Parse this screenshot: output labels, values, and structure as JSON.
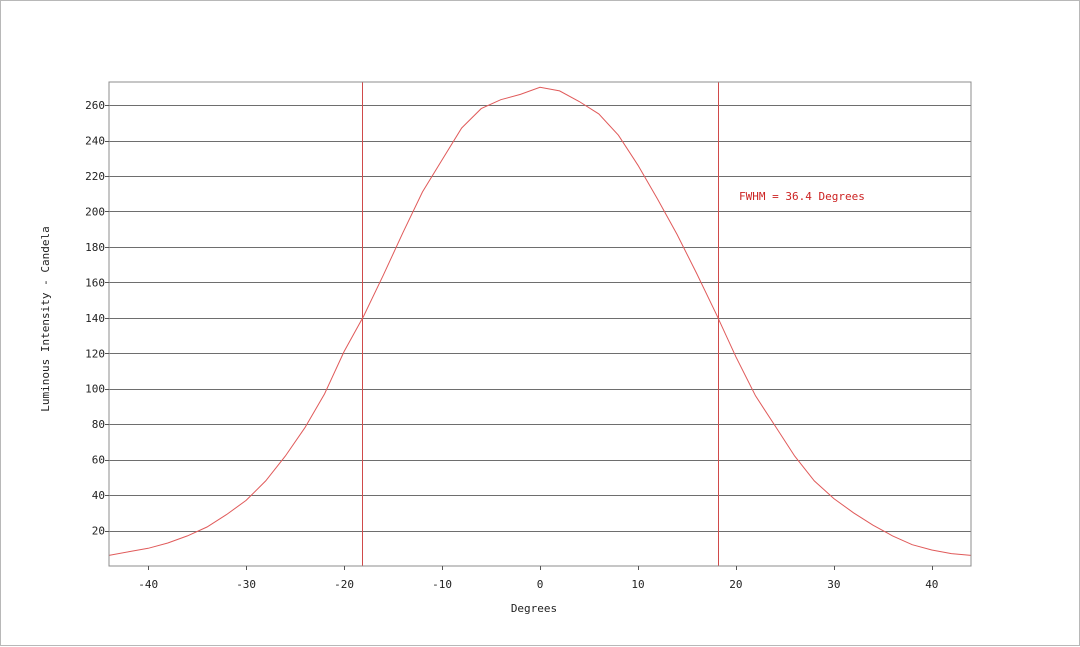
{
  "chart_data": {
    "type": "line",
    "title": "",
    "xlabel": "Degrees",
    "ylabel": "Luminous Intensity - Candela",
    "xlim": [
      -44,
      44
    ],
    "ylim": [
      0,
      273
    ],
    "x_ticks": [
      -40,
      -30,
      -20,
      -10,
      0,
      10,
      20,
      30,
      40
    ],
    "y_ticks": [
      20,
      40,
      60,
      80,
      100,
      120,
      140,
      160,
      180,
      200,
      220,
      240,
      260
    ],
    "grid": "horizontal",
    "line_color": "#e05a5a",
    "marker_color": "#d04a4a",
    "annotation": {
      "text": "FWHM = 36.4 Degrees",
      "color": "#cc2222"
    },
    "vertical_markers": [
      -18.2,
      18.2
    ],
    "series": [
      {
        "x": [
          -44,
          -42,
          -40,
          -38,
          -36,
          -34,
          -32,
          -30,
          -28,
          -26,
          -24,
          -22,
          -20,
          -18,
          -16,
          -14,
          -12,
          -10,
          -8,
          -6,
          -4,
          -2,
          0,
          2,
          4,
          6,
          8,
          10,
          12,
          14,
          16,
          18,
          20,
          22,
          24,
          26,
          28,
          30,
          32,
          34,
          36,
          38,
          40,
          42,
          44
        ],
        "y": [
          6,
          8,
          10,
          13,
          17,
          22,
          29,
          37,
          48,
          62,
          78,
          97,
          121,
          141,
          164,
          188,
          211,
          229,
          247,
          258,
          263,
          266,
          270,
          268,
          262,
          255,
          243,
          226,
          207,
          187,
          165,
          142,
          118,
          96,
          79,
          62,
          48,
          38,
          30,
          23,
          17,
          12,
          9,
          7,
          6
        ]
      }
    ]
  }
}
